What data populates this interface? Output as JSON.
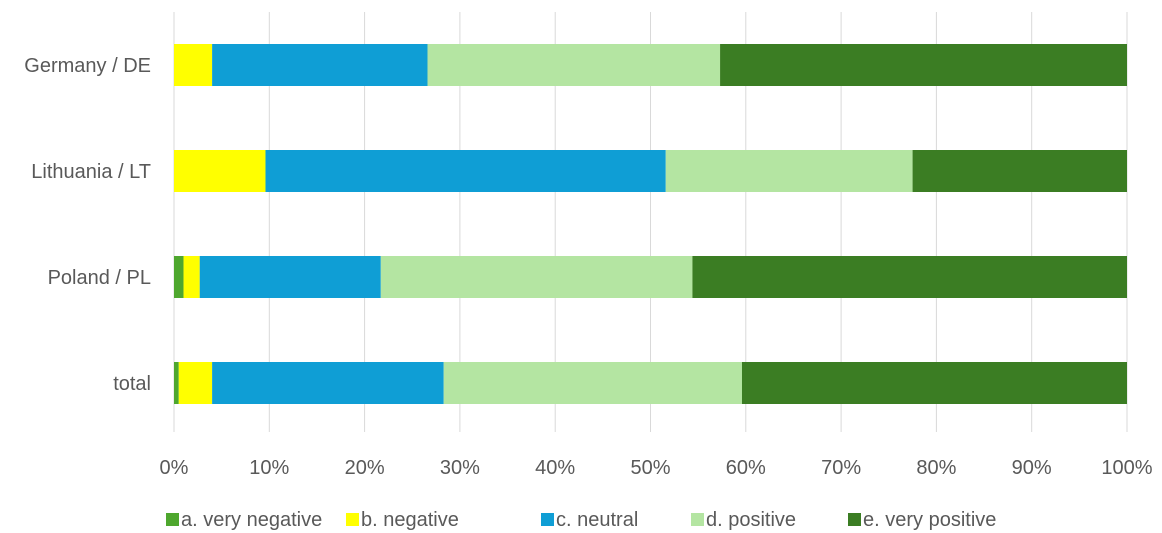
{
  "chart_data": {
    "type": "bar",
    "orientation": "horizontal",
    "stacked": "percent",
    "categories": [
      "Germany / DE",
      "Lithuania / LT",
      "Poland / PL",
      "total"
    ],
    "series": [
      {
        "name": "a. very negative",
        "color": "#4ea72e",
        "values": [
          0.0,
          0.0,
          1.0,
          0.5
        ]
      },
      {
        "name": "b. negative",
        "color": "#ffff00",
        "values": [
          4.0,
          9.6,
          1.7,
          3.5
        ]
      },
      {
        "name": "c. neutral",
        "color": "#0f9ed5",
        "values": [
          22.6,
          42.0,
          19.0,
          24.3
        ]
      },
      {
        "name": "d. positive",
        "color": "#b4e5a2",
        "values": [
          30.7,
          25.9,
          32.7,
          31.3
        ]
      },
      {
        "name": "e. very positive",
        "color": "#3b7d23",
        "values": [
          42.7,
          22.5,
          45.6,
          40.4
        ]
      }
    ],
    "x_ticks": [
      "0%",
      "10%",
      "20%",
      "30%",
      "40%",
      "50%",
      "60%",
      "70%",
      "80%",
      "90%",
      "100%"
    ],
    "xlim": [
      0,
      100
    ],
    "grid": true,
    "legend_position": "bottom"
  }
}
